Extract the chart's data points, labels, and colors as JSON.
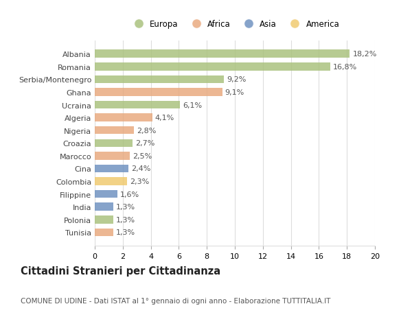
{
  "categories": [
    "Albania",
    "Romania",
    "Serbia/Montenegro",
    "Ghana",
    "Ucraina",
    "Algeria",
    "Nigeria",
    "Croazia",
    "Marocco",
    "Cina",
    "Colombia",
    "Filippine",
    "India",
    "Polonia",
    "Tunisia"
  ],
  "values": [
    18.2,
    16.8,
    9.2,
    9.1,
    6.1,
    4.1,
    2.8,
    2.7,
    2.5,
    2.4,
    2.3,
    1.6,
    1.3,
    1.3,
    1.3
  ],
  "labels": [
    "18,2%",
    "16,8%",
    "9,2%",
    "9,1%",
    "6,1%",
    "4,1%",
    "2,8%",
    "2,7%",
    "2,5%",
    "2,4%",
    "2,3%",
    "1,6%",
    "1,3%",
    "1,3%",
    "1,3%"
  ],
  "continent": [
    "Europa",
    "Europa",
    "Europa",
    "Africa",
    "Europa",
    "Africa",
    "Africa",
    "Europa",
    "Africa",
    "Asia",
    "America",
    "Asia",
    "Asia",
    "Europa",
    "Africa"
  ],
  "colors": {
    "Europa": "#a8c07a",
    "Africa": "#e8a87c",
    "Asia": "#6b8fbf",
    "America": "#f0c96b"
  },
  "xlim": [
    0,
    20
  ],
  "xticks": [
    0,
    2,
    4,
    6,
    8,
    10,
    12,
    14,
    16,
    18,
    20
  ],
  "title": "Cittadini Stranieri per Cittadinanza",
  "subtitle": "COMUNE DI UDINE - Dati ISTAT al 1° gennaio di ogni anno - Elaborazione TUTTITALIA.IT",
  "background_color": "#ffffff",
  "grid_color": "#dddddd",
  "bar_alpha": 0.82,
  "label_fontsize": 8.0,
  "value_fontsize": 8.0,
  "title_fontsize": 10.5,
  "subtitle_fontsize": 7.5,
  "legend_fontsize": 8.5,
  "bar_height": 0.62
}
